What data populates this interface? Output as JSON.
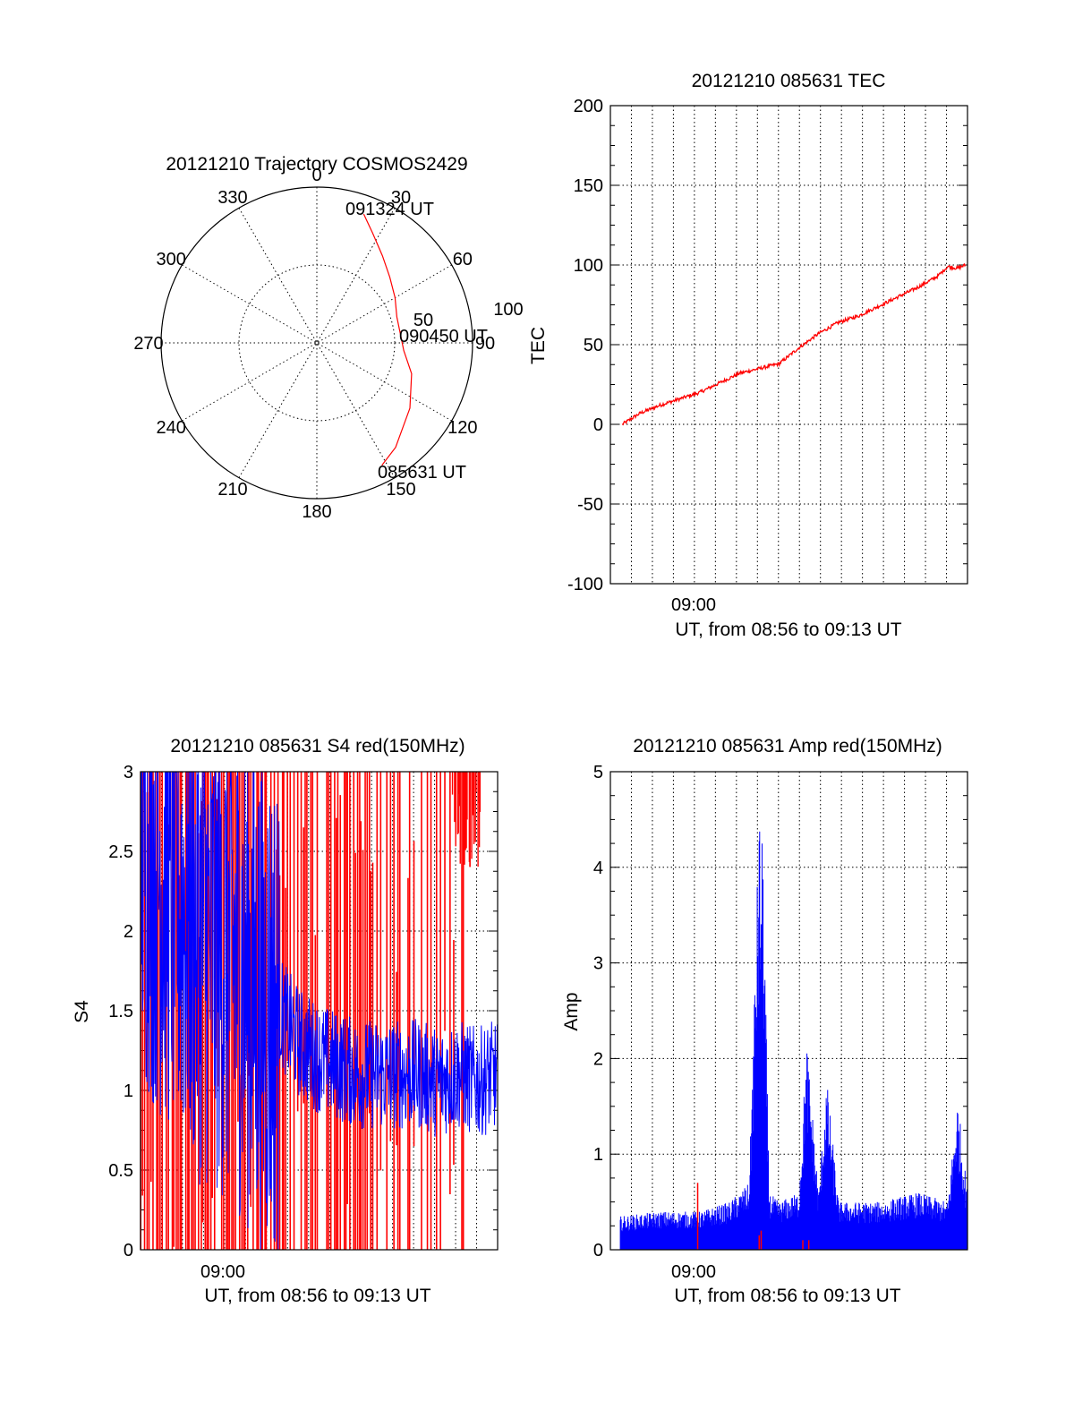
{
  "colors": {
    "red_series": "#ff0000",
    "blue_series": "#0000ff",
    "axes": "#000000",
    "background": "#ffffff"
  },
  "chart_data": [
    {
      "type": "polar",
      "title": "20121210 Trajectory COSMOS2429",
      "angle_ticks": [
        "0",
        "30",
        "60",
        "90",
        "120",
        "150",
        "180",
        "210",
        "240",
        "270",
        "300",
        "330"
      ],
      "radial_ticks": [
        "50",
        "100"
      ],
      "grid": true,
      "track": {
        "azimuth_deg": [
          152,
          143,
          125,
          108,
          95,
          84,
          72,
          60,
          48,
          37,
          27,
          20
        ],
        "radius": [
          89,
          84,
          73,
          64,
          56,
          54,
          54,
          58,
          63,
          70,
          79,
          88
        ],
        "color": "#ff0000"
      },
      "annotations": [
        {
          "text": "085631 UT",
          "azimuth_deg": 152,
          "radius": 89
        },
        {
          "text": "090450 UT",
          "azimuth_deg": 90,
          "radius": 54
        },
        {
          "text": "091324 UT",
          "azimuth_deg": 20,
          "radius": 88
        }
      ]
    },
    {
      "type": "line",
      "title": "20121210 085631 TEC",
      "xlabel": "UT, from 08:56 to 09:13 UT",
      "ylabel": "TEC",
      "x_tick_labels": [
        "09:00"
      ],
      "y_ticks": [
        "200",
        "150",
        "100",
        "50",
        "0",
        "-50",
        "-100"
      ],
      "xlim_minutes": [
        -4.5,
        13.5
      ],
      "ylim": [
        -100,
        200
      ],
      "grid": true,
      "series": [
        {
          "color": "#ff0000",
          "x_minutes": [
            -3.9,
            -3.0,
            -2.0,
            -1.0,
            0.0,
            1.0,
            2.0,
            3.0,
            4.0,
            5.0,
            6.0,
            7.0,
            8.0,
            9.0,
            10.0,
            11.0,
            12.0,
            12.5,
            13.0,
            13.4
          ],
          "y": [
            0,
            7,
            12,
            16,
            20,
            26,
            32,
            35,
            38,
            48,
            57,
            64,
            68,
            74,
            80,
            86,
            93,
            99,
            98,
            100
          ]
        }
      ]
    },
    {
      "type": "line",
      "title": "20121210 085631 S4 red(150MHz)",
      "xlabel": "UT, from 08:56 to 09:13 UT",
      "ylabel": "S4",
      "x_tick_labels": [
        "09:00"
      ],
      "y_ticks": [
        "3",
        "2.5",
        "2",
        "1.5",
        "1",
        "0.5",
        "0"
      ],
      "xlim_minutes": [
        -3.0,
        15.0
      ],
      "ylim": [
        0,
        3
      ],
      "grid": true,
      "series": [
        {
          "color": "#0000ff",
          "x_minutes": [
            -3.0,
            -2.0,
            -1.0,
            0.0,
            1.0,
            2.0,
            3.0,
            4.0,
            5.0,
            6.0,
            7.0,
            8.0,
            9.0,
            10.0,
            11.0,
            12.0,
            13.0,
            14.0,
            15.0
          ],
          "y": [
            2.6,
            2.4,
            2.2,
            2.0,
            1.9,
            1.8,
            1.6,
            1.5,
            1.3,
            1.2,
            1.15,
            1.1,
            1.1,
            1.1,
            1.1,
            1.05,
            1.1,
            1.05,
            1.1
          ]
        },
        {
          "color": "#ff0000",
          "x_minutes": [
            -3.0,
            -1.0,
            1.0,
            3.0,
            5.0,
            7.0,
            9.0,
            11.0,
            13.0,
            14.0,
            15.0
          ],
          "y": [
            2.8,
            2.6,
            2.4,
            2.2,
            2.0,
            1.9,
            1.8,
            1.6,
            1.4,
            1.2,
            1.1
          ]
        }
      ]
    },
    {
      "type": "line",
      "title": "20121210 085631 Amp red(150MHz)",
      "xlabel": "UT, from 08:56 to 09:13 UT",
      "ylabel": "Amp",
      "x_tick_labels": [
        "09:00"
      ],
      "y_ticks": [
        "5",
        "4",
        "3",
        "2",
        "1",
        "0"
      ],
      "xlim_minutes": [
        -4.5,
        13.5
      ],
      "ylim": [
        0,
        5
      ],
      "grid": true,
      "series": [
        {
          "color": "#0000ff",
          "x_minutes": [
            -4.0,
            -2.0,
            0.0,
            1.5,
            2.5,
            3.0,
            3.2,
            3.5,
            4.0,
            5.0,
            5.4,
            6.0,
            6.4,
            7.0,
            9.0,
            11.0,
            12.5,
            13.0,
            13.5
          ],
          "y": [
            0.35,
            0.4,
            0.4,
            0.5,
            0.7,
            4.6,
            4.2,
            0.6,
            0.5,
            0.6,
            2.2,
            0.6,
            1.8,
            0.5,
            0.5,
            0.6,
            0.5,
            1.6,
            0.6
          ]
        }
      ]
    }
  ]
}
